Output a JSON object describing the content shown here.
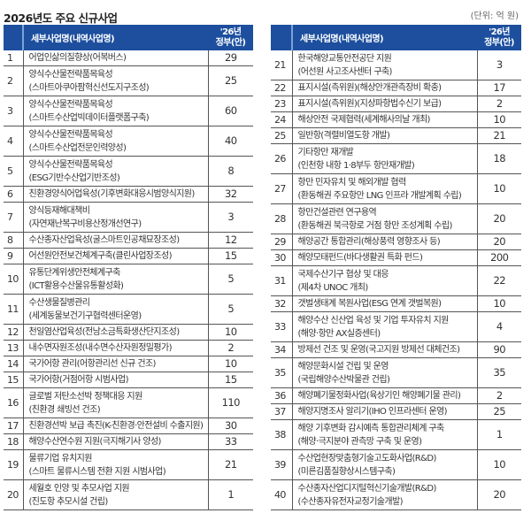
{
  "title": "2026년도 주요 신규사업",
  "unit": "(단위: 억 원)",
  "header": {
    "num": "",
    "name": "세부사업명(내역사업명)",
    "value_line1": "'26년",
    "value_line2": "정부(안)"
  },
  "left_rows": [
    {
      "num": "1",
      "name": "어업인삶의질향상(어복버스)",
      "sub": "",
      "value": "29"
    },
    {
      "num": "2",
      "name": "양식수산물전략품목육성",
      "sub": "(스마트아쿠아팜혁신선도지구조성)",
      "value": "25"
    },
    {
      "num": "3",
      "name": "양식수산물전략품목육성",
      "sub": "(스마트수산업빅데이터플랫폼구축)",
      "value": "60"
    },
    {
      "num": "4",
      "name": "양식수산물전략품목육성",
      "sub": "(스마트수산업전문인력양성)",
      "value": "40"
    },
    {
      "num": "5",
      "name": "양식수산물전략품목육성",
      "sub": "(ESG기반수산업기반조성)",
      "value": "8"
    },
    {
      "num": "6",
      "name": "친환경양식어업육성(기후변화대응시범양식지원)",
      "sub": "",
      "value": "32"
    },
    {
      "num": "7",
      "name": "양식등재해대책비",
      "sub": "(자연재난복구비용산정개선연구)",
      "value": "3"
    },
    {
      "num": "8",
      "name": "수산종자산업육성(굴스마트인공채묘장조성)",
      "sub": "",
      "value": "12"
    },
    {
      "num": "9",
      "name": "어선원안전보건체계구축(클린사업장조성)",
      "sub": "",
      "value": "15"
    },
    {
      "num": "10",
      "name": "유통단계위생안전체계구축",
      "sub": "(ICT활용수산물유통활성화)",
      "value": "5"
    },
    {
      "num": "11",
      "name": "수산생물질병관리",
      "sub": "(세계동물보건기구협력센터운영)",
      "value": "5"
    },
    {
      "num": "12",
      "name": "천일염산업육성(전남소금특화생산단지조성)",
      "sub": "",
      "value": "10"
    },
    {
      "num": "13",
      "name": "내수면자원조성(내수면수산자원정밀평가)",
      "sub": "",
      "value": "2"
    },
    {
      "num": "14",
      "name": "국가어항 관리(어항관리선 신규 건조)",
      "sub": "",
      "value": "10"
    },
    {
      "num": "15",
      "name": "국가어항(거점어항 시범사업)",
      "sub": "",
      "value": "15"
    },
    {
      "num": "16",
      "name": "글로벌 저탄소선박 정책대응 지원",
      "sub": "(친환경 쇄빙선 건조)",
      "value": "110"
    },
    {
      "num": "17",
      "name": "친환경선박 보급 촉진(K-친환경·안전설비 수출지원)",
      "sub": "",
      "value": "30"
    },
    {
      "num": "18",
      "name": "해양수산연수원 지원(극지해기사 양성)",
      "sub": "",
      "value": "33"
    },
    {
      "num": "19",
      "name": "물류기업 유치지원",
      "sub": "(스마트 물류시스템 전환 지원 시범사업)",
      "value": "21"
    },
    {
      "num": "20",
      "name": "세월호 인양 및 추모사업 지원",
      "sub": "(진도항 추모시설 건립)",
      "value": "1"
    }
  ],
  "right_rows": [
    {
      "num": "21",
      "name": "한국해양교통안전공단 지원",
      "sub": "(어선원 사고조사센터 구축)",
      "value": "3"
    },
    {
      "num": "22",
      "name": "표지시설(측위원)(해상안개관측장비 확충)",
      "sub": "",
      "value": "17"
    },
    {
      "num": "23",
      "name": "표지시설(측위원)(지상파항법수신기 보급)",
      "sub": "",
      "value": "2"
    },
    {
      "num": "24",
      "name": "해상안전 국제협력(세계해사의날 개최)",
      "sub": "",
      "value": "10"
    },
    {
      "num": "25",
      "name": "일반항(격렬비열도항 개발)",
      "sub": "",
      "value": "21"
    },
    {
      "num": "26",
      "name": "기타항만 재개발",
      "sub": "(인천항 내항 1·8부두 항만재개발)",
      "value": "18"
    },
    {
      "num": "27",
      "name": "항만 민자유치 및 해외개발 협력",
      "sub": "(환동해권 주요항만 LNG 인프라 개발계획 수립)",
      "value": "10"
    },
    {
      "num": "28",
      "name": "항만건설관련 연구용역",
      "sub": "(환동해권 북극항로 거점 항만 조성계획 수립)",
      "value": "20"
    },
    {
      "num": "29",
      "name": "해양공간 통합관리(해상풍력 영향조사 등)",
      "sub": "",
      "value": "20"
    },
    {
      "num": "30",
      "name": "해양모태펀드(바다생활권 특화 펀드)",
      "sub": "",
      "value": "200"
    },
    {
      "num": "31",
      "name": "국제수산기구 협상 및 대응",
      "sub": "(제4차 UNOC 개최)",
      "value": "22"
    },
    {
      "num": "32",
      "name": "갯벌생태계 복원사업(ESG 연계 갯벌복원)",
      "sub": "",
      "value": "10"
    },
    {
      "num": "33",
      "name": "해양수산 신산업 육성 및 기업 투자유치 지원",
      "sub": "(해양·항만 AX실증센터)",
      "value": "4"
    },
    {
      "num": "34",
      "name": "방제선 건조 및 운영(국고지원 방제선 대체건조)",
      "sub": "",
      "value": "90"
    },
    {
      "num": "35",
      "name": "해양문화시설 건립 및 운영",
      "sub": "(국립해양수산박물관 건립)",
      "value": "35"
    },
    {
      "num": "36",
      "name": "해양폐기물정화사업(육상기인 해양폐기물 관리)",
      "sub": "",
      "value": "2"
    },
    {
      "num": "37",
      "name": "해양지명조사 알리기(IHO 인프라센터 운영)",
      "sub": "",
      "value": "25"
    },
    {
      "num": "38",
      "name": "해양 기후변화 감시예측 통합관리체계 구축",
      "sub": "(해양·극지분야 관측망 구축 및 운영)",
      "value": "1"
    },
    {
      "num": "39",
      "name": "수산업현장맞춤형기술고도화사업(R&D)",
      "sub": "(미른김품질향상시스템구축)",
      "value": "10"
    },
    {
      "num": "40",
      "name": "수산종자산업디지털혁신기술개발(R&D)",
      "sub": "(수산종자유전자교정기술개발)",
      "value": "20"
    }
  ]
}
